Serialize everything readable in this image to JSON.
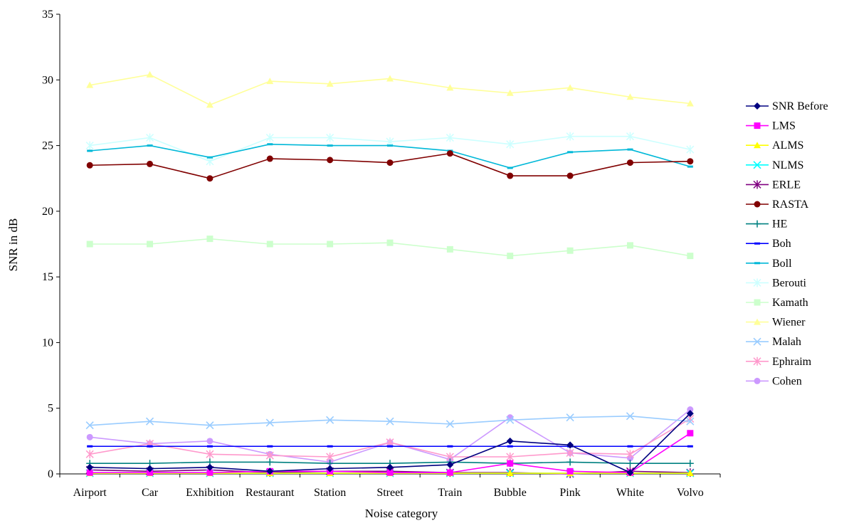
{
  "chart_data": {
    "type": "line",
    "title": "",
    "xlabel": "Noise category",
    "ylabel": "SNR in dB",
    "ylim": [
      0,
      35
    ],
    "yticks": [
      0,
      5,
      10,
      15,
      20,
      25,
      30,
      35
    ],
    "grid": false,
    "legend_position": "right",
    "categories": [
      "Airport",
      "Car",
      "Exhibition",
      "Restaurant",
      "Station",
      "Street",
      "Train",
      "Bubble",
      "Pink",
      "White",
      "Volvo"
    ],
    "series": [
      {
        "name": "SNR Before",
        "color": "#000080",
        "marker": "diamond",
        "values": [
          0.5,
          0.4,
          0.5,
          0.2,
          0.4,
          0.5,
          0.7,
          2.5,
          2.2,
          0.1,
          4.6
        ]
      },
      {
        "name": "LMS",
        "color": "#ff00ff",
        "marker": "square",
        "values": [
          0.1,
          0.1,
          0.1,
          0.2,
          0.2,
          0.1,
          0.1,
          0.8,
          0.2,
          0.1,
          3.1
        ]
      },
      {
        "name": "ALMS",
        "color": "#ffff00",
        "marker": "triangle",
        "values": [
          0.05,
          0.05,
          0.05,
          0.05,
          0.05,
          0.05,
          0.05,
          0.05,
          0.05,
          0.05,
          0.05
        ]
      },
      {
        "name": "NLMS",
        "color": "#00ffff",
        "marker": "x",
        "values": [
          0.05,
          0.05,
          0.05,
          0.05,
          0.05,
          0.05,
          0.05,
          0.05,
          0.05,
          0.05,
          0.05
        ]
      },
      {
        "name": "ERLE",
        "color": "#800080",
        "marker": "star",
        "values": [
          0.3,
          0.2,
          0.3,
          0.1,
          0.2,
          0.2,
          0.1,
          0.1,
          0.0,
          0.2,
          0.1
        ]
      },
      {
        "name": "RASTA",
        "color": "#800000",
        "marker": "circle",
        "values": [
          23.5,
          23.6,
          22.5,
          24.0,
          23.9,
          23.7,
          24.4,
          22.7,
          22.7,
          23.7,
          23.8
        ]
      },
      {
        "name": "HE",
        "color": "#008080",
        "marker": "plus",
        "values": [
          0.8,
          0.8,
          0.9,
          0.9,
          0.8,
          0.8,
          0.9,
          0.8,
          0.9,
          0.8,
          0.8
        ]
      },
      {
        "name": "Boh",
        "color": "#0000ff",
        "marker": "dash",
        "values": [
          2.1,
          2.1,
          2.1,
          2.1,
          2.1,
          2.1,
          2.1,
          2.1,
          2.1,
          2.1,
          2.1
        ]
      },
      {
        "name": "Boll",
        "color": "#00b8d8",
        "marker": "dash",
        "values": [
          24.6,
          25.0,
          24.1,
          25.1,
          25.0,
          25.0,
          24.6,
          23.3,
          24.5,
          24.7,
          23.4
        ]
      },
      {
        "name": "Berouti",
        "color": "#ccffff",
        "marker": "star",
        "values": [
          25.0,
          25.6,
          23.8,
          25.6,
          25.6,
          25.3,
          25.6,
          25.1,
          25.7,
          25.7,
          24.7
        ]
      },
      {
        "name": "Kamath",
        "color": "#ccffcc",
        "marker": "square",
        "values": [
          17.5,
          17.5,
          17.9,
          17.5,
          17.5,
          17.6,
          17.1,
          16.6,
          17.0,
          17.4,
          16.6
        ]
      },
      {
        "name": "Wiener",
        "color": "#ffff99",
        "marker": "triangle",
        "values": [
          29.6,
          30.4,
          28.1,
          29.9,
          29.7,
          30.1,
          29.4,
          29.0,
          29.4,
          28.7,
          28.2
        ]
      },
      {
        "name": "Malah",
        "color": "#99ccff",
        "marker": "x",
        "values": [
          3.7,
          4.0,
          3.7,
          3.9,
          4.1,
          4.0,
          3.8,
          4.1,
          4.3,
          4.4,
          4.0
        ]
      },
      {
        "name": "Ephraim",
        "color": "#ff99cc",
        "marker": "star",
        "values": [
          1.5,
          2.3,
          1.5,
          1.4,
          1.3,
          2.4,
          1.3,
          1.3,
          1.6,
          1.5,
          4.2
        ]
      },
      {
        "name": "Cohen",
        "color": "#cc99ff",
        "marker": "circle",
        "values": [
          2.8,
          2.3,
          2.5,
          1.5,
          0.9,
          2.4,
          1.1,
          4.3,
          1.6,
          1.2,
          4.9
        ]
      }
    ]
  }
}
